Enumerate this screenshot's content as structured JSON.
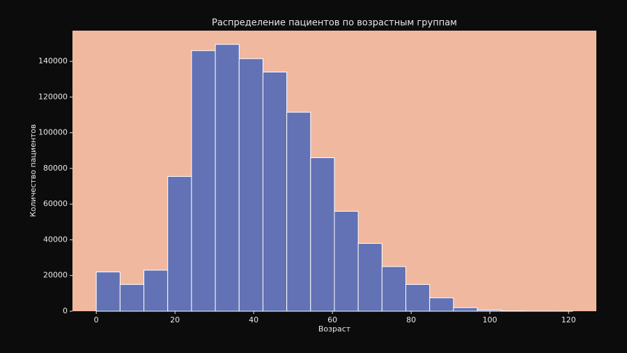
{
  "chart_data": {
    "type": "histogram",
    "title": "Распределение пациентов по возрастным группам",
    "x_label": "Возраст",
    "y_label": "Количество пациентов",
    "bins": [
      0,
      6.05,
      12.1,
      18.15,
      24.2,
      30.25,
      36.3,
      42.35,
      48.4,
      54.45,
      60.5,
      66.55,
      72.6,
      78.65,
      84.7,
      90.75,
      96.8,
      102.85,
      108.9,
      114.95,
      121
    ],
    "values": [
      22000,
      15000,
      23000,
      75500,
      146000,
      149500,
      141500,
      134000,
      111500,
      86000,
      56000,
      38000,
      25000,
      15000,
      7500,
      2000,
      700,
      150,
      50,
      20
    ],
    "color": "#6272b4",
    "edge_color": "#ffffff",
    "background": "#f0b89e",
    "xlim": [
      -6.05,
      127.05
    ],
    "ylim": [
      0,
      157200
    ],
    "xticks": [
      0,
      20,
      40,
      60,
      80,
      100,
      120
    ],
    "yticks": [
      0,
      20000,
      40000,
      60000,
      80000,
      100000,
      120000,
      140000
    ]
  }
}
